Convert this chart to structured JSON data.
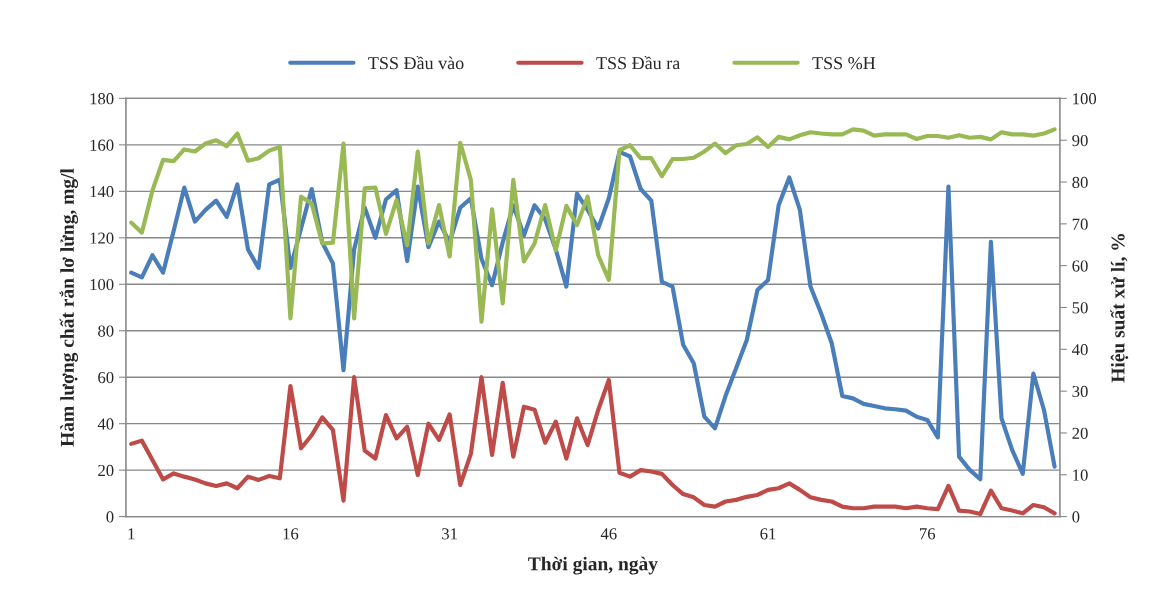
{
  "chart_data": {
    "type": "line",
    "xlabel": "Thời gian, ngày",
    "ylabel": "Hàm lượng chất rắn lơ lửng, mg/l",
    "y2label": "Hiệu suất xử lí, %",
    "categories": [
      "1",
      null,
      null,
      null,
      null,
      null,
      null,
      null,
      null,
      null,
      null,
      null,
      null,
      null,
      null,
      "16",
      null,
      null,
      null,
      null,
      null,
      null,
      null,
      null,
      null,
      null,
      null,
      null,
      null,
      null,
      "31",
      null,
      null,
      null,
      null,
      null,
      null,
      null,
      null,
      null,
      null,
      null,
      null,
      null,
      null,
      "46",
      null,
      null,
      null,
      null,
      null,
      null,
      null,
      null,
      null,
      null,
      null,
      null,
      null,
      null,
      "61",
      null,
      null,
      null,
      null,
      null,
      null,
      null,
      null,
      null,
      null,
      null,
      null,
      null,
      null,
      "76",
      null,
      null,
      null,
      null,
      null,
      null,
      null,
      null,
      null,
      null,
      null,
      null
    ],
    "series": [
      {
        "name": "TSS Đầu vào",
        "color": "#4a7ebb",
        "values": [
          105,
          103,
          112.5,
          105,
          123,
          141.6,
          127,
          132,
          136,
          129,
          143,
          115,
          107,
          143,
          145,
          107,
          124,
          141,
          118,
          109,
          63,
          115,
          133,
          120,
          136.5,
          140.5,
          110,
          142,
          116,
          127,
          118,
          133,
          137,
          111,
          99.6,
          118,
          134,
          121,
          134,
          128,
          115,
          99,
          139,
          132,
          124,
          137,
          157,
          155,
          141,
          136,
          101,
          99,
          74,
          66,
          43,
          38,
          52,
          64,
          76,
          97.5,
          101.8,
          134,
          146,
          132,
          99,
          87.5,
          74.6,
          51.9,
          50.9,
          48.5,
          47.6,
          46.6,
          46.2,
          45.6,
          43,
          41.6,
          34.1,
          142,
          25.8,
          20.1,
          16.1,
          118.3,
          42.3,
          28.7,
          18.4,
          61.6,
          45.9,
          21.5
        ]
      },
      {
        "name": "TSS Đầu ra",
        "color": "#be4b48",
        "values": [
          31.3,
          32.7,
          24.4,
          16,
          18.6,
          17.2,
          16,
          14.3,
          13.2,
          14.3,
          12.2,
          17.2,
          15.8,
          17.5,
          16.5,
          56.2,
          29.4,
          35,
          42.7,
          37.3,
          6.9,
          60,
          28.4,
          25,
          43.7,
          33.7,
          38.7,
          17.9,
          40,
          33,
          44,
          13.6,
          27,
          60,
          26.5,
          57.6,
          25.8,
          47.3,
          46,
          31.8,
          40.9,
          25,
          42.3,
          30.8,
          45.9,
          58.8,
          18.9,
          17.2,
          20,
          19.4,
          18.4,
          13.6,
          9.7,
          8.3,
          5,
          4.3,
          6.5,
          7.2,
          8.5,
          9.3,
          11.5,
          12.2,
          14.3,
          11.5,
          8.3,
          7.2,
          6.5,
          4.3,
          3.6,
          3.6,
          4.3,
          4.3,
          4.3,
          3.6,
          4.3,
          3.6,
          3.2,
          13.2,
          2.6,
          2.2,
          1.1,
          11.2,
          3.6,
          2.6,
          1.4,
          5,
          4,
          1.4
        ]
      },
      {
        "name": "TSS %H",
        "color": "#98b954",
        "axis": "y2",
        "values": [
          70.3,
          67.9,
          78,
          85.3,
          85,
          87.8,
          87.3,
          89.2,
          90,
          88.6,
          91.6,
          85.1,
          85.7,
          87.5,
          88.4,
          47.4,
          76.5,
          74.9,
          65.3,
          65.5,
          89.2,
          47.4,
          78.5,
          78.7,
          67.6,
          75.7,
          64.9,
          87.3,
          65.3,
          74.5,
          62.2,
          89.4,
          80.5,
          46.6,
          73.5,
          51,
          80.5,
          61,
          65.3,
          74.5,
          63.7,
          74.3,
          69.7,
          76.5,
          62.5,
          56.6,
          87.6,
          88.8,
          85.7,
          85.7,
          81.4,
          85.5,
          85.5,
          85.8,
          87.3,
          89.2,
          86.9,
          88.8,
          89.1,
          90.7,
          88.4,
          90.8,
          90.2,
          91.2,
          91.9,
          91.6,
          91.4,
          91.4,
          92.6,
          92.3,
          91.1,
          91.4,
          91.4,
          91.4,
          90.3,
          91,
          91,
          90.6,
          91.2,
          90.6,
          90.8,
          90.2,
          91.9,
          91.4,
          91.4,
          91.1,
          91.6,
          92.6
        ]
      }
    ],
    "ylim": [
      0,
      180
    ],
    "yticks": [
      0,
      20,
      40,
      60,
      80,
      100,
      120,
      140,
      160,
      180
    ],
    "y2lim": [
      0,
      100
    ],
    "y2ticks": [
      0,
      10,
      20,
      30,
      40,
      50,
      60,
      70,
      80,
      90,
      100
    ],
    "grid": "y",
    "legend": "top"
  }
}
